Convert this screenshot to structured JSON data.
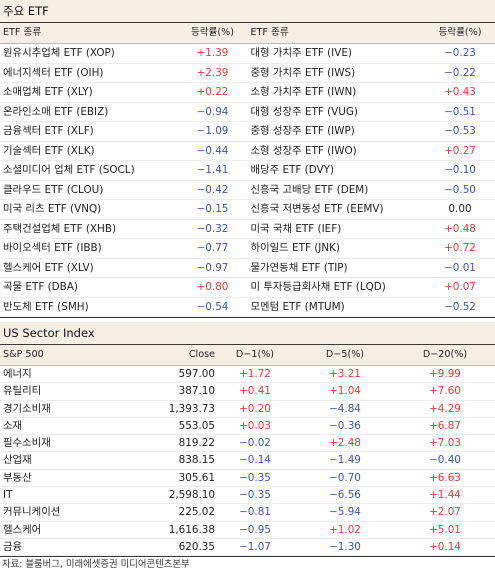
{
  "etf_section": {
    "title": "주요 ETF",
    "headers": {
      "left_name": "ETF 종류",
      "left_value": "등락률(%)",
      "right_name": "ETF 종류",
      "right_value": "등락률(%)"
    },
    "left": [
      {
        "name": "원유시추업체 ETF (XOP)",
        "value": "+1.39",
        "sign": "pos"
      },
      {
        "name": "에너지섹터 ETF (OIH)",
        "value": "+2.39",
        "sign": "pos"
      },
      {
        "name": "소매업체 ETF (XLY)",
        "value": "+0.22",
        "sign": "pos"
      },
      {
        "name": "온라인소매 ETF (EBIZ)",
        "value": "−0.94",
        "sign": "neg"
      },
      {
        "name": "금융섹터 ETF (XLF)",
        "value": "−1.09",
        "sign": "neg"
      },
      {
        "name": "기술섹터 ETF (XLK)",
        "value": "−0.44",
        "sign": "neg"
      },
      {
        "name": "소셜미디어 업체 ETF (SOCL)",
        "value": "−1.41",
        "sign": "neg"
      },
      {
        "name": "클라우드 ETF (CLOU)",
        "value": "−0.42",
        "sign": "neg"
      },
      {
        "name": "미국 리츠 ETF (VNQ)",
        "value": "−0.15",
        "sign": "neg"
      },
      {
        "name": "주택건설업체 ETF (XHB)",
        "value": "−0.32",
        "sign": "neg"
      },
      {
        "name": "바이오섹터 ETF (IBB)",
        "value": "−0.77",
        "sign": "neg"
      },
      {
        "name": "헬스케어 ETF (XLV)",
        "value": "−0.97",
        "sign": "neg"
      },
      {
        "name": "곡물 ETF (DBA)",
        "value": "+0.80",
        "sign": "pos"
      },
      {
        "name": "반도체 ETF (SMH)",
        "value": "−0.54",
        "sign": "neg"
      }
    ],
    "right": [
      {
        "name": "대형 가치주 ETF (IVE)",
        "value": "−0.23",
        "sign": "neg"
      },
      {
        "name": "중형 가치주 ETF (IWS)",
        "value": "−0.22",
        "sign": "neg"
      },
      {
        "name": "소형 가치주 ETF (IWN)",
        "value": "+0.43",
        "sign": "pos"
      },
      {
        "name": "대형 성장주 ETF (VUG)",
        "value": "−0.51",
        "sign": "neg"
      },
      {
        "name": "중형 성장주 ETF (IWP)",
        "value": "−0.53",
        "sign": "neg"
      },
      {
        "name": "소형 성장주 ETF (IWO)",
        "value": "+0.27",
        "sign": "pos"
      },
      {
        "name": "배당주 ETF (DVY)",
        "value": "−0.10",
        "sign": "neg"
      },
      {
        "name": "신흥국 고배당 ETF (DEM)",
        "value": "−0.50",
        "sign": "neg"
      },
      {
        "name": "신흥국 저변동성 ETF (EEMV)",
        "value": "0.00",
        "sign": "neu"
      },
      {
        "name": "미국 국채 ETF (IEF)",
        "value": "+0.48",
        "sign": "pos"
      },
      {
        "name": "하이일드 ETF (JNK)",
        "value": "+0.72",
        "sign": "pos"
      },
      {
        "name": "물가연동채 ETF (TIP)",
        "value": "−0.01",
        "sign": "neg"
      },
      {
        "name": "미 투자등급회사채 ETF (LQD)",
        "value": "+0.07",
        "sign": "pos"
      },
      {
        "name": "모멘텀 ETF (MTUM)",
        "value": "−0.52",
        "sign": "neg"
      }
    ]
  },
  "sector_section": {
    "title": "US Sector Index",
    "headers": [
      "S&P 500",
      "Close",
      "D−1(%)",
      "D−5(%)",
      "D−20(%)"
    ],
    "rows": [
      {
        "name": "에너지",
        "close": "597.00",
        "d1": "+1.72",
        "d1s": "pos",
        "d5": "+3.21",
        "d5s": "pos",
        "d20": "+9.99",
        "d20s": "pos"
      },
      {
        "name": "유틸리티",
        "close": "387.10",
        "d1": "+0.41",
        "d1s": "pos",
        "d5": "+1.04",
        "d5s": "pos",
        "d20": "+7.60",
        "d20s": "pos"
      },
      {
        "name": "경기소비재",
        "close": "1,393.73",
        "d1": "+0.20",
        "d1s": "pos",
        "d5": "−4.84",
        "d5s": "neg",
        "d20": "+4.29",
        "d20s": "pos"
      },
      {
        "name": "소재",
        "close": "553.05",
        "d1": "+0.03",
        "d1s": "pos",
        "d5": "−0.36",
        "d5s": "neg",
        "d20": "+6.87",
        "d20s": "pos"
      },
      {
        "name": "필수소비재",
        "close": "819.22",
        "d1": "−0.02",
        "d1s": "neg",
        "d5": "+2.48",
        "d5s": "pos",
        "d20": "+7.03",
        "d20s": "pos"
      },
      {
        "name": "산업재",
        "close": "838.15",
        "d1": "−0.14",
        "d1s": "neg",
        "d5": "−1.49",
        "d5s": "neg",
        "d20": "−0.40",
        "d20s": "neg"
      },
      {
        "name": "부동산",
        "close": "305.61",
        "d1": "−0.35",
        "d1s": "neg",
        "d5": "−0.70",
        "d5s": "neg",
        "d20": "+6.63",
        "d20s": "pos"
      },
      {
        "name": "IT",
        "close": "2,598.10",
        "d1": "−0.35",
        "d1s": "neg",
        "d5": "−6.56",
        "d5s": "neg",
        "d20": "+1.44",
        "d20s": "pos"
      },
      {
        "name": "커뮤니케이션",
        "close": "225.02",
        "d1": "−0.81",
        "d1s": "neg",
        "d5": "−5.94",
        "d5s": "neg",
        "d20": "+2.07",
        "d20s": "pos"
      },
      {
        "name": "헬스케어",
        "close": "1,616.38",
        "d1": "−0.95",
        "d1s": "neg",
        "d5": "+1.02",
        "d5s": "pos",
        "d20": "+5.01",
        "d20s": "pos"
      },
      {
        "name": "금융",
        "close": "620.35",
        "d1": "−1.07",
        "d1s": "neg",
        "d5": "−1.30",
        "d5s": "neg",
        "d20": "+0.14",
        "d20s": "pos"
      }
    ]
  },
  "source": "자료: 블룸버그, 미래에셋증권 미디어콘텐츠본부",
  "colors": {
    "positive": "#e53935",
    "negative": "#3f51b5",
    "header_bg": "#f5efe3"
  }
}
